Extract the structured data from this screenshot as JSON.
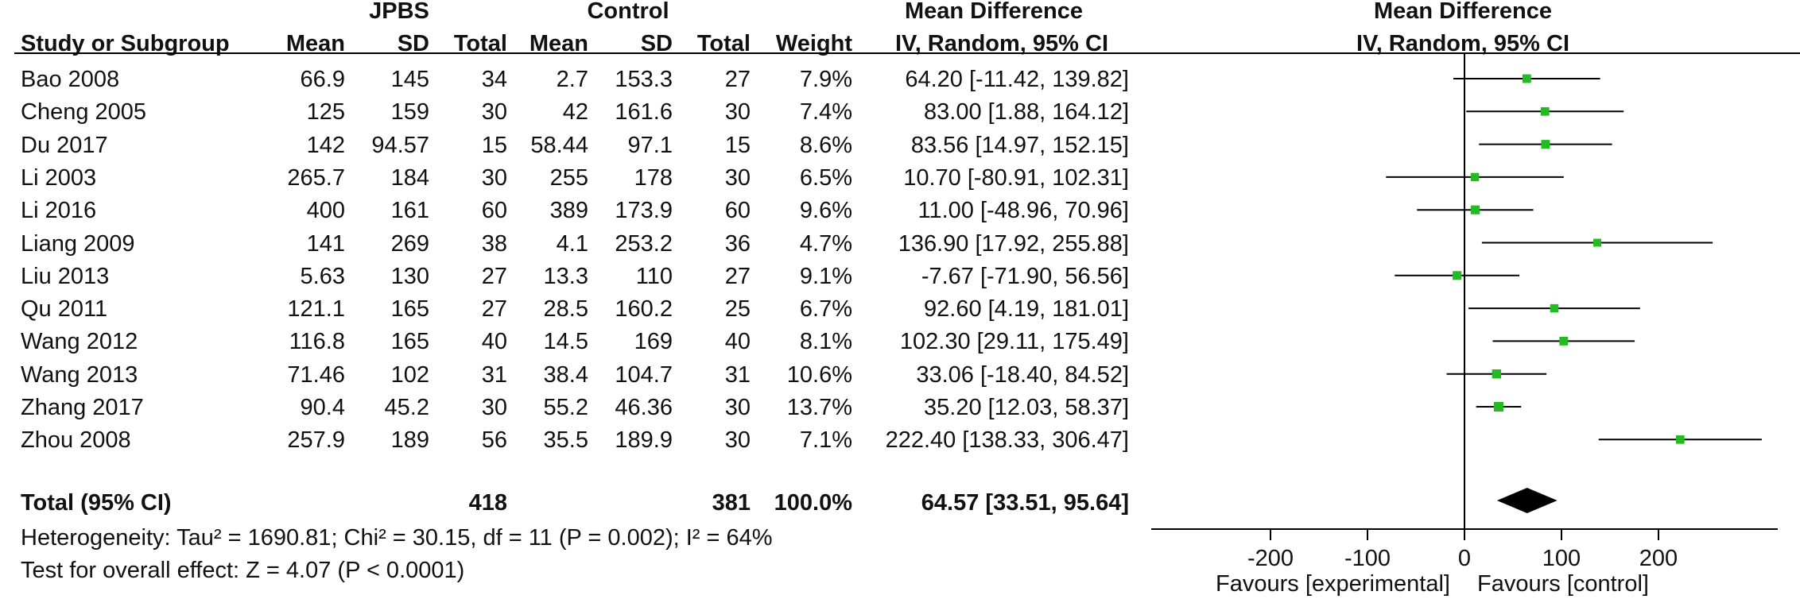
{
  "header": {
    "group_experimental": "JPBS",
    "group_control": "Control",
    "md_table_title": "Mean Difference",
    "md_table_method": "IV, Random, 95% CI",
    "md_plot_title": "Mean Difference",
    "md_plot_method": "IV, Random, 95% CI",
    "col_study": "Study or Subgroup",
    "col_mean_e": "Mean",
    "col_sd_e": "SD",
    "col_total_e": "Total",
    "col_mean_c": "Mean",
    "col_sd_c": "SD",
    "col_total_c": "Total",
    "col_weight": "Weight"
  },
  "studies": [
    {
      "name": "Bao 2008",
      "mean_e": "66.9",
      "sd_e": "145",
      "n_e": "34",
      "mean_c": "2.7",
      "sd_c": "153.3",
      "n_c": "27",
      "weight": "7.9%",
      "ci_text": "64.20 [-11.42, 139.82]"
    },
    {
      "name": "Cheng 2005",
      "mean_e": "125",
      "sd_e": "159",
      "n_e": "30",
      "mean_c": "42",
      "sd_c": "161.6",
      "n_c": "30",
      "weight": "7.4%",
      "ci_text": "83.00 [1.88, 164.12]"
    },
    {
      "name": "Du 2017",
      "mean_e": "142",
      "sd_e": "94.57",
      "n_e": "15",
      "mean_c": "58.44",
      "sd_c": "97.1",
      "n_c": "15",
      "weight": "8.6%",
      "ci_text": "83.56 [14.97, 152.15]"
    },
    {
      "name": "Li 2003",
      "mean_e": "265.7",
      "sd_e": "184",
      "n_e": "30",
      "mean_c": "255",
      "sd_c": "178",
      "n_c": "30",
      "weight": "6.5%",
      "ci_text": "10.70 [-80.91, 102.31]"
    },
    {
      "name": "Li 2016",
      "mean_e": "400",
      "sd_e": "161",
      "n_e": "60",
      "mean_c": "389",
      "sd_c": "173.9",
      "n_c": "60",
      "weight": "9.6%",
      "ci_text": "11.00 [-48.96, 70.96]"
    },
    {
      "name": "Liang 2009",
      "mean_e": "141",
      "sd_e": "269",
      "n_e": "38",
      "mean_c": "4.1",
      "sd_c": "253.2",
      "n_c": "36",
      "weight": "4.7%",
      "ci_text": "136.90 [17.92, 255.88]"
    },
    {
      "name": "Liu 2013",
      "mean_e": "5.63",
      "sd_e": "130",
      "n_e": "27",
      "mean_c": "13.3",
      "sd_c": "110",
      "n_c": "27",
      "weight": "9.1%",
      "ci_text": "-7.67 [-71.90, 56.56]"
    },
    {
      "name": "Qu 2011",
      "mean_e": "121.1",
      "sd_e": "165",
      "n_e": "27",
      "mean_c": "28.5",
      "sd_c": "160.2",
      "n_c": "25",
      "weight": "6.7%",
      "ci_text": "92.60 [4.19, 181.01]"
    },
    {
      "name": "Wang 2012",
      "mean_e": "116.8",
      "sd_e": "165",
      "n_e": "40",
      "mean_c": "14.5",
      "sd_c": "169",
      "n_c": "40",
      "weight": "8.1%",
      "ci_text": "102.30 [29.11, 175.49]"
    },
    {
      "name": "Wang 2013",
      "mean_e": "71.46",
      "sd_e": "102",
      "n_e": "31",
      "mean_c": "38.4",
      "sd_c": "104.7",
      "n_c": "31",
      "weight": "10.6%",
      "ci_text": "33.06 [-18.40, 84.52]"
    },
    {
      "name": "Zhang 2017",
      "mean_e": "90.4",
      "sd_e": "45.2",
      "n_e": "30",
      "mean_c": "55.2",
      "sd_c": "46.36",
      "n_c": "30",
      "weight": "13.7%",
      "ci_text": "35.20 [12.03, 58.37]"
    },
    {
      "name": "Zhou 2008",
      "mean_e": "257.9",
      "sd_e": "189",
      "n_e": "56",
      "mean_c": "35.5",
      "sd_c": "189.9",
      "n_c": "30",
      "weight": "7.1%",
      "ci_text": "222.40 [138.33, 306.47]"
    }
  ],
  "total": {
    "label": "Total (95% CI)",
    "n_e": "418",
    "n_c": "381",
    "weight": "100.0%",
    "ci_text": "64.57 [33.51, 95.64]"
  },
  "heterogeneity": "Heterogeneity: Tau² = 1690.81; Chi² = 30.15, df = 11 (P = 0.002); I² = 64%",
  "overall_effect": "Test for overall effect: Z = 4.07 (P < 0.0001)",
  "favours_left": "Favours [experimental]",
  "favours_right": "Favours [control]",
  "chart_data": {
    "type": "forest",
    "xlim": [
      -200,
      200
    ],
    "ticks": [
      -200,
      -100,
      0,
      100,
      200
    ],
    "reference_line": 0,
    "colors": {
      "study_marker": "#22bb22",
      "line": "#000000",
      "diamond": "#000000"
    },
    "studies": [
      {
        "name": "Bao 2008",
        "md": 64.2,
        "lo": -11.42,
        "hi": 139.82,
        "weight": 7.9
      },
      {
        "name": "Cheng 2005",
        "md": 83.0,
        "lo": 1.88,
        "hi": 164.12,
        "weight": 7.4
      },
      {
        "name": "Du 2017",
        "md": 83.56,
        "lo": 14.97,
        "hi": 152.15,
        "weight": 8.6
      },
      {
        "name": "Li 2003",
        "md": 10.7,
        "lo": -80.91,
        "hi": 102.31,
        "weight": 6.5
      },
      {
        "name": "Li 2016",
        "md": 11.0,
        "lo": -48.96,
        "hi": 70.96,
        "weight": 9.6
      },
      {
        "name": "Liang 2009",
        "md": 136.9,
        "lo": 17.92,
        "hi": 255.88,
        "weight": 4.7
      },
      {
        "name": "Liu 2013",
        "md": -7.67,
        "lo": -71.9,
        "hi": 56.56,
        "weight": 9.1
      },
      {
        "name": "Qu 2011",
        "md": 92.6,
        "lo": 4.19,
        "hi": 181.01,
        "weight": 6.7
      },
      {
        "name": "Wang 2012",
        "md": 102.3,
        "lo": 29.11,
        "hi": 175.49,
        "weight": 8.1
      },
      {
        "name": "Wang 2013",
        "md": 33.06,
        "lo": -18.4,
        "hi": 84.52,
        "weight": 10.6
      },
      {
        "name": "Zhang 2017",
        "md": 35.2,
        "lo": 12.03,
        "hi": 58.37,
        "weight": 13.7
      },
      {
        "name": "Zhou 2008",
        "md": 222.4,
        "lo": 138.33,
        "hi": 306.47,
        "weight": 7.1
      }
    ],
    "pooled": {
      "md": 64.57,
      "lo": 33.51,
      "hi": 95.64
    }
  }
}
